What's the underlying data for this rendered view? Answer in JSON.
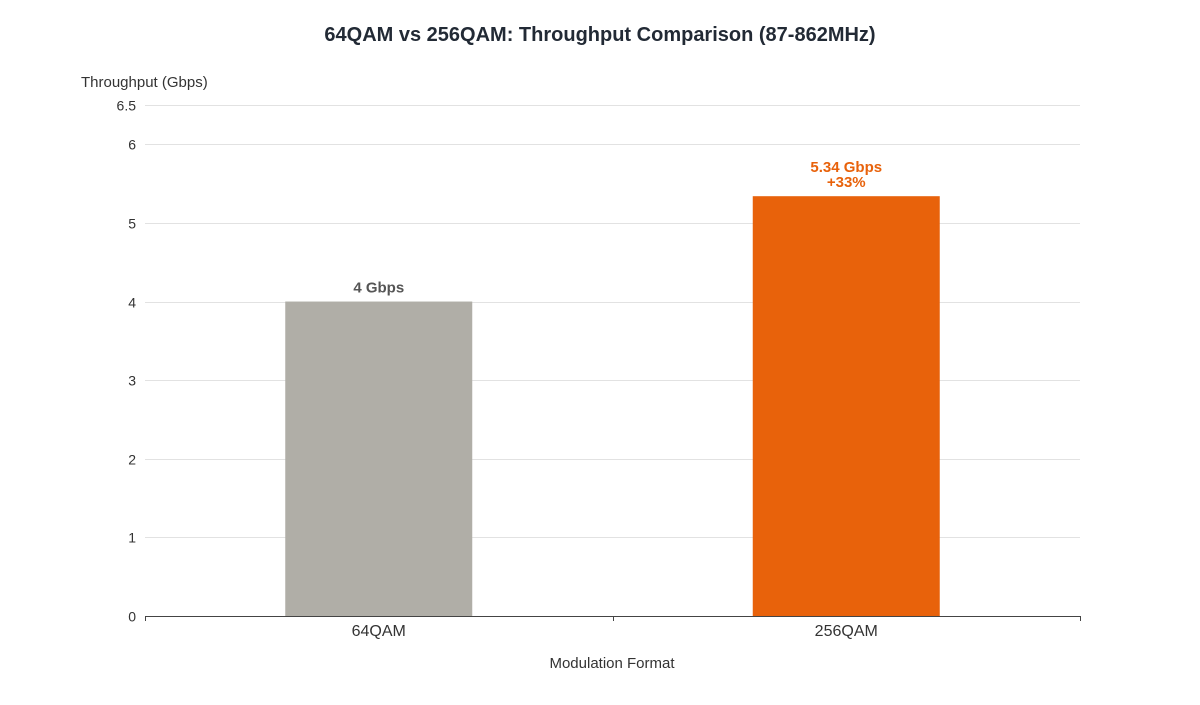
{
  "chart_data": {
    "type": "bar",
    "title": "64QAM vs 256QAM: Throughput Comparison (87-862MHz)",
    "xlabel": "Modulation Format",
    "ylabel": "Throughput (Gbps)",
    "categories": [
      "64QAM",
      "256QAM"
    ],
    "values": [
      4,
      5.34
    ],
    "bar_labels": [
      [
        "4 Gbps"
      ],
      [
        "5.34 Gbps",
        "+33%"
      ]
    ],
    "colors": [
      "#b0aea7",
      "#e8620b"
    ],
    "label_colors": [
      "#555555",
      "#e8620b"
    ],
    "ylim": [
      0,
      6.5
    ],
    "yticks": [
      0,
      1,
      2,
      3,
      4,
      5,
      6,
      6.5
    ],
    "grid": true,
    "legend": "none"
  }
}
